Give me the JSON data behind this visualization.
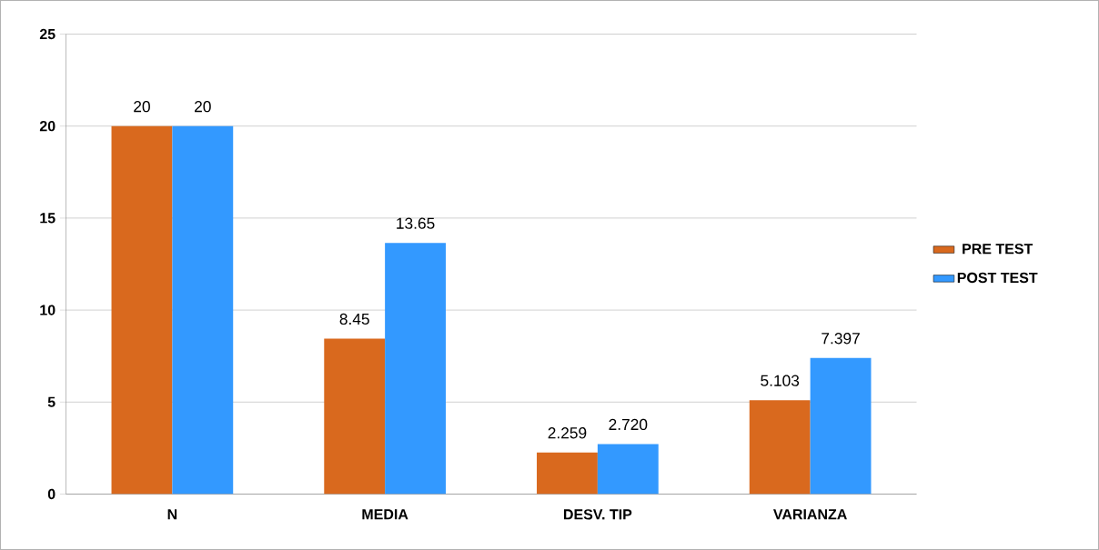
{
  "chart_data": {
    "type": "bar",
    "categories": [
      "N",
      "MEDIA",
      "DESV. TIP",
      "VARIANZA"
    ],
    "series": [
      {
        "name": "PRE TEST",
        "color": "#d9691e",
        "values": [
          20,
          8.45,
          2.259,
          5.103
        ],
        "value_labels": [
          "20",
          "8.45",
          "2.259",
          "5.103"
        ]
      },
      {
        "name": "POST TEST",
        "color": "#3399ff",
        "values": [
          20,
          13.65,
          2.72,
          7.397
        ],
        "value_labels": [
          "20",
          "13.65",
          "2.720",
          "7.397"
        ]
      }
    ],
    "ylim": [
      0,
      25
    ],
    "yticks": [
      0,
      5,
      10,
      15,
      20,
      25
    ],
    "grid": "y",
    "legend": "right"
  }
}
